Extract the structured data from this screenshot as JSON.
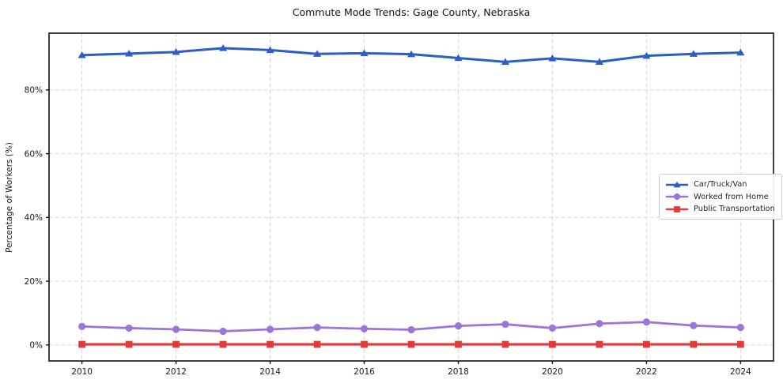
{
  "chart_data": {
    "type": "line",
    "title": "Commute Mode Trends: Gage County, Nebraska",
    "xlabel": "",
    "ylabel": "Percentage of Workers (%)",
    "x": [
      2010,
      2011,
      2012,
      2013,
      2014,
      2015,
      2016,
      2017,
      2018,
      2019,
      2020,
      2021,
      2022,
      2023,
      2024
    ],
    "x_ticks": [
      2010,
      2012,
      2014,
      2016,
      2018,
      2020,
      2022,
      2024
    ],
    "x_tick_labels": [
      "2010",
      "2012",
      "2014",
      "2016",
      "2018",
      "2020",
      "2022",
      "2024"
    ],
    "y_ticks": [
      0,
      20,
      40,
      60,
      80
    ],
    "y_tick_labels": [
      "0%",
      "20%",
      "40%",
      "60%",
      "80%"
    ],
    "xlim": [
      2009.3,
      2024.7
    ],
    "ylim": [
      -5,
      97.8
    ],
    "grid": true,
    "grid_color": "#d8d8d8",
    "spine_color": "#111111",
    "background": "#ffffff",
    "legend_position": "center right",
    "series": [
      {
        "name": "Car/Truck/Van",
        "marker": "triangle",
        "color": "#2d5ec4",
        "line_width": 3,
        "values": [
          90.9,
          91.4,
          91.9,
          93.1,
          92.5,
          91.3,
          91.5,
          91.2,
          90.0,
          88.8,
          89.9,
          88.8,
          90.7,
          91.3,
          91.7
        ]
      },
      {
        "name": "Worked from Home",
        "marker": "circle",
        "color": "#9d75d8",
        "line_width": 2.8,
        "values": [
          5.8,
          5.3,
          4.9,
          4.3,
          4.9,
          5.5,
          5.1,
          4.8,
          6.0,
          6.5,
          5.3,
          6.7,
          7.2,
          6.1,
          5.5
        ]
      },
      {
        "name": "Public Transportation",
        "marker": "square",
        "color": "#e03a3a",
        "line_width": 3.2,
        "values": [
          0.2,
          0.2,
          0.2,
          0.2,
          0.2,
          0.2,
          0.2,
          0.2,
          0.2,
          0.2,
          0.2,
          0.2,
          0.2,
          0.2,
          0.2
        ]
      }
    ]
  }
}
